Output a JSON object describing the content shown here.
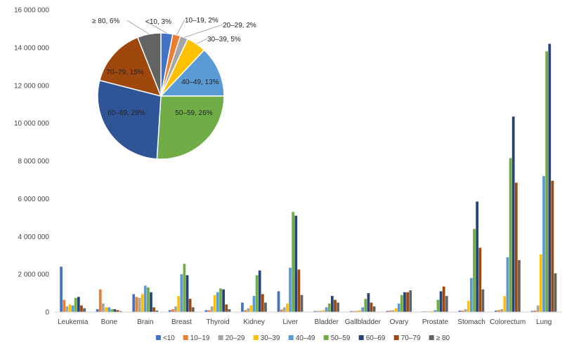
{
  "chart_data": [
    {
      "type": "bar",
      "categories": [
        "Leukemia",
        "Bone",
        "Brain",
        "Breast",
        "Thyroid",
        "Kidney",
        "Liver",
        "Bladder",
        "Gallbladder",
        "Ovary",
        "Prostate",
        "Stomach",
        "Colorectum",
        "Lung"
      ],
      "ylim": [
        0,
        16000000
      ],
      "yticks": [
        0,
        2000000,
        4000000,
        6000000,
        8000000,
        10000000,
        12000000,
        14000000,
        16000000
      ],
      "ytick_labels": [
        "0",
        "2 000 000",
        "4 000 000",
        "6 000 000",
        "8 000 000",
        "10 000 000",
        "12 000 000",
        "14 000 000",
        "16 000 000"
      ],
      "legend_position": "bottom",
      "grid": false,
      "series": [
        {
          "name": "<10",
          "color": "#4472C4",
          "values": [
            2400000,
            150000,
            950000,
            100000,
            100000,
            500000,
            1100000,
            50000,
            50000,
            60000,
            30000,
            80000,
            80000,
            60000
          ]
        },
        {
          "name": "10–19",
          "color": "#ED7D31",
          "values": [
            650000,
            1200000,
            800000,
            150000,
            100000,
            100000,
            130000,
            50000,
            50000,
            80000,
            30000,
            80000,
            100000,
            80000
          ]
        },
        {
          "name": "20–29",
          "color": "#A5A5A5",
          "values": [
            300000,
            450000,
            750000,
            300000,
            300000,
            200000,
            250000,
            60000,
            60000,
            100000,
            30000,
            150000,
            150000,
            350000
          ]
        },
        {
          "name": "30–39",
          "color": "#FFC000",
          "values": [
            400000,
            250000,
            950000,
            850000,
            900000,
            350000,
            450000,
            100000,
            100000,
            200000,
            50000,
            600000,
            850000,
            3050000
          ]
        },
        {
          "name": "40–49",
          "color": "#5B9BD5",
          "values": [
            350000,
            250000,
            1400000,
            2000000,
            1050000,
            850000,
            2350000,
            250000,
            250000,
            450000,
            100000,
            1800000,
            2900000,
            7200000
          ]
        },
        {
          "name": "50–59",
          "color": "#70AD47",
          "values": [
            750000,
            150000,
            1300000,
            2550000,
            1250000,
            1950000,
            5300000,
            450000,
            700000,
            900000,
            650000,
            4400000,
            8150000,
            13800000
          ]
        },
        {
          "name": "60–69",
          "color": "#264478",
          "values": [
            800000,
            150000,
            1050000,
            1950000,
            1200000,
            2200000,
            5100000,
            850000,
            1000000,
            1050000,
            1100000,
            5850000,
            10350000,
            14200000
          ]
        },
        {
          "name": "70–79",
          "color": "#9E480E",
          "values": [
            350000,
            100000,
            250000,
            700000,
            400000,
            950000,
            2250000,
            650000,
            500000,
            1050000,
            1350000,
            3400000,
            6850000,
            6950000
          ]
        },
        {
          "name": "≥ 80",
          "color": "#636363",
          "values": [
            200000,
            50000,
            80000,
            250000,
            150000,
            500000,
            900000,
            500000,
            300000,
            1150000,
            850000,
            1200000,
            2750000,
            2050000
          ]
        }
      ]
    },
    {
      "type": "pie",
      "slices": [
        {
          "label": "<10,  3%",
          "value": 3,
          "color": "#4472C4"
        },
        {
          "label": "10–19, 2%",
          "value": 2,
          "color": "#ED7D31"
        },
        {
          "label": "20–29,  2%",
          "value": 2,
          "color": "#A5A5A5"
        },
        {
          "label": "30–39,  5%",
          "value": 5,
          "color": "#FFC000"
        },
        {
          "label": "40–49, 13%",
          "value": 13,
          "color": "#5B9BD5"
        },
        {
          "label": "50–59,  26%",
          "value": 26,
          "color": "#70AD47"
        },
        {
          "label": "60–69,  28%",
          "value": 28,
          "color": "#2F5597"
        },
        {
          "label": "70–79, 15%",
          "value": 15,
          "color": "#9E480E"
        },
        {
          "label": "≥ 80,  6%",
          "value": 6,
          "color": "#636363"
        }
      ]
    }
  ],
  "legend": {
    "items": [
      {
        "label": "<10",
        "color": "#4472C4"
      },
      {
        "label": "10–19",
        "color": "#ED7D31"
      },
      {
        "label": "20–29",
        "color": "#A5A5A5"
      },
      {
        "label": "30–39",
        "color": "#FFC000"
      },
      {
        "label": "40–49",
        "color": "#5B9BD5"
      },
      {
        "label": "50–59",
        "color": "#70AD47"
      },
      {
        "label": "60–69",
        "color": "#264478"
      },
      {
        "label": "70–79",
        "color": "#9E480E"
      },
      {
        "label": "≥ 80",
        "color": "#636363"
      }
    ]
  }
}
